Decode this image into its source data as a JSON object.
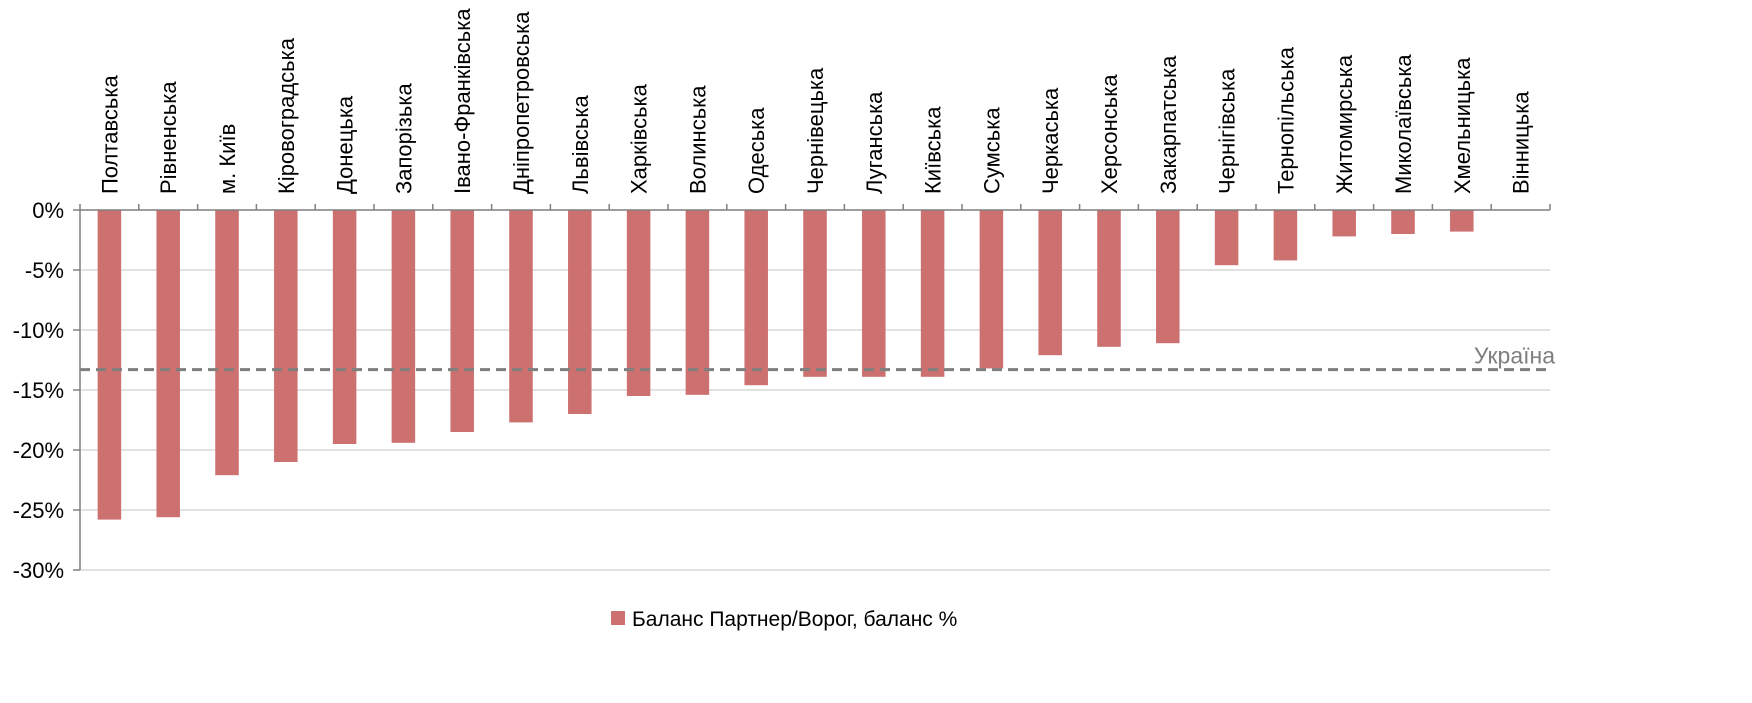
{
  "chart_data": {
    "type": "bar",
    "categories": [
      "Полтавська",
      "Рівненська",
      "м. Київ",
      "Кіровоградська",
      "Донецька",
      "Запорізька",
      "Івано-Франківська",
      "Дніпропетровська",
      "Львівська",
      "Харківська",
      "Волинська",
      "Одеська",
      "Чернівецька",
      "Луганська",
      "Київська",
      "Сумська",
      "Черкаська",
      "Херсонська",
      "Закарпатська",
      "Чернігівська",
      "Тернопільська",
      "Житомирська",
      "Миколаївська",
      "Хмельницька",
      "Вінницька"
    ],
    "series": [
      {
        "name": "Баланс Партнер/Ворог, баланс %",
        "values": [
          -25.8,
          -25.6,
          -22.1,
          -21.0,
          -19.5,
          -19.4,
          -18.5,
          -17.7,
          -17.0,
          -15.5,
          -15.4,
          -14.6,
          -13.9,
          -13.9,
          -13.9,
          -13.2,
          -12.1,
          -11.4,
          -11.1,
          -4.6,
          -4.2,
          -2.2,
          -2.0,
          -1.8,
          0.0
        ],
        "color": "#cd7070"
      }
    ],
    "reference_line": {
      "label": "Україна",
      "value": -13.3,
      "color": "#7f7f7f"
    },
    "ylim": [
      -30,
      0
    ],
    "yticks": [
      0,
      -5,
      -10,
      -15,
      -20,
      -25,
      -30
    ],
    "ytick_labels": [
      "0%",
      "-5%",
      "-10%",
      "-15%",
      "-20%",
      "-25%",
      "-30%"
    ],
    "gridlines": true,
    "grid_color": "#d9d9d9",
    "legend_position": "bottom-center",
    "xlabel": "",
    "ylabel": "",
    "title": ""
  }
}
